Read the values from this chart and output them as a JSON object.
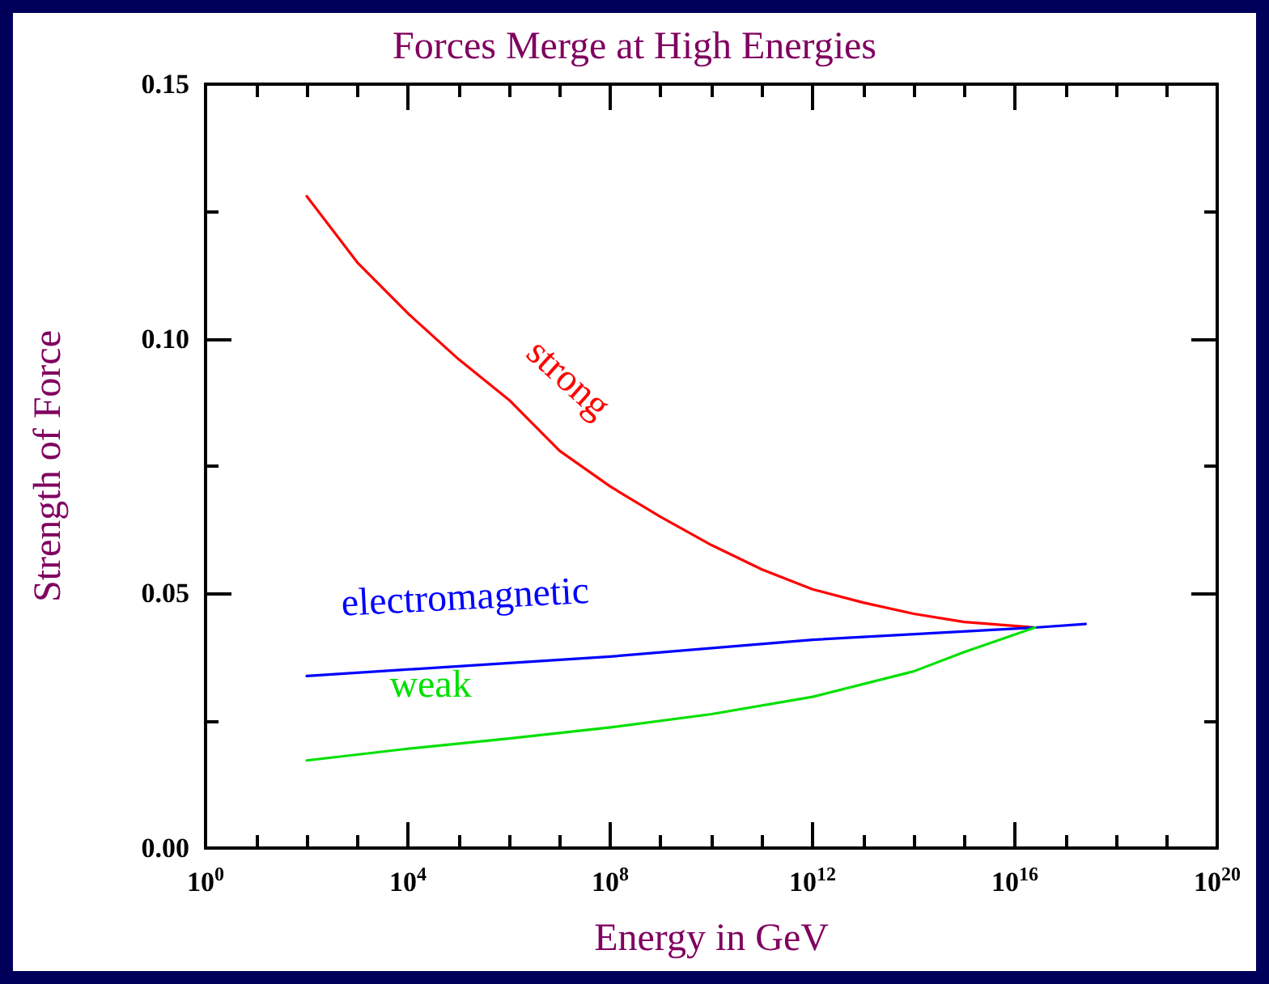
{
  "chart_data": {
    "type": "line",
    "title": "Forces Merge at High Energies",
    "xlabel": "Energy in GeV",
    "ylabel": "Strength of Force",
    "log": "x",
    "grid": false,
    "legend": false,
    "marker": "none",
    "line_style": "solid",
    "xlim": [
      1,
      1e+20
    ],
    "xticks": [
      {
        "value": 1,
        "label": "10$^{0}$"
      },
      {
        "value": 10.0,
        "label": null
      },
      {
        "value": 100.0,
        "label": null
      },
      {
        "value": 1000.0,
        "label": null
      },
      {
        "value": 10000.0,
        "label": "10$^{4}$"
      },
      {
        "value": 100000.0,
        "label": null
      },
      {
        "value": 1000000.0,
        "label": null
      },
      {
        "value": 10000000.0,
        "label": null
      },
      {
        "value": 100000000.0,
        "label": "10$^{8}$"
      },
      {
        "value": 1000000000.0,
        "label": null
      },
      {
        "value": 10000000000.0,
        "label": null
      },
      {
        "value": 100000000000.0,
        "label": null
      },
      {
        "value": 1000000000000.0,
        "label": "10$^{12}$"
      },
      {
        "value": 10000000000000.0,
        "label": null
      },
      {
        "value": 100000000000000.0,
        "label": null
      },
      {
        "value": 1000000000000000.0,
        "label": null
      },
      {
        "value": 1e+16,
        "label": "10$^{16}$"
      },
      {
        "value": 1e+17,
        "label": null
      },
      {
        "value": 1e+18,
        "label": null
      },
      {
        "value": 1e+19,
        "label": null
      },
      {
        "value": 1e+20,
        "label": "10$^{20}$"
      }
    ],
    "ylim": [
      0,
      0.15
    ],
    "yticks": [
      {
        "value": 0,
        "label": "0.00"
      },
      {
        "value": 0.025,
        "label": null
      },
      {
        "value": 0.05,
        "label": "0.05"
      },
      {
        "value": 0.075,
        "label": null
      },
      {
        "value": 0.1,
        "label": "0.10"
      },
      {
        "value": 0.125,
        "label": null
      },
      {
        "value": 0.15,
        "label": "0.15"
      }
    ],
    "series": [
      {
        "name": "strong",
        "color": "#ff0000",
        "x": [
          100.0,
          1000.0,
          10000.0,
          100000.0,
          1000000.0,
          10000000.0,
          100000000.0,
          1000000000.0,
          10000000000.0,
          100000000000.0,
          1000000000000.0,
          10000000000000.0,
          100000000000000.0,
          1000000000000000.0,
          2.5e+16
        ],
        "values": [
          0.128,
          0.115,
          0.105,
          0.096,
          0.088,
          0.078,
          0.071,
          0.065,
          0.0595,
          0.0547,
          0.0508,
          0.0482,
          0.046,
          0.0444,
          0.0433
        ]
      },
      {
        "name": "electromagnetic",
        "color": "#0000ff",
        "x": [
          100.0,
          100000000.0,
          1000000000000.0,
          2.5e+16,
          2.5e+17
        ],
        "values": [
          0.0338,
          0.0376,
          0.0409,
          0.0433,
          0.044
        ]
      },
      {
        "name": "weak",
        "color": "#00e000",
        "x": [
          100.0,
          10000.0,
          1000000.0,
          100000000.0,
          10000000000.0,
          1000000000000.0,
          100000000000000.0,
          1000000000000000.0,
          2.5e+16
        ],
        "values": [
          0.0172,
          0.0195,
          0.0215,
          0.0237,
          0.0263,
          0.0297,
          0.0347,
          0.0385,
          0.0433
        ]
      }
    ]
  }
}
